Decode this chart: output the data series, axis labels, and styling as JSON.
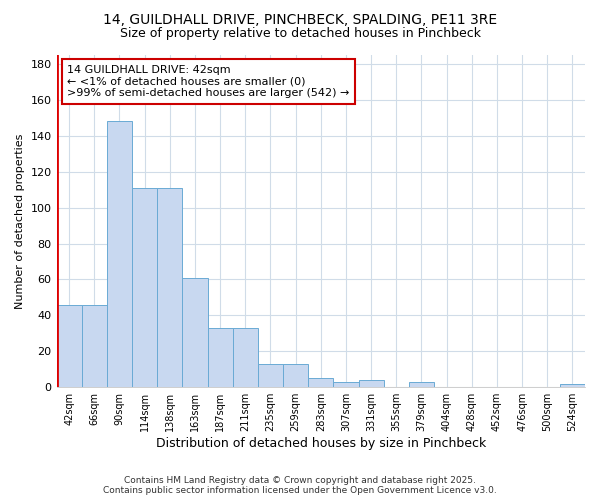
{
  "title_line1": "14, GUILDHALL DRIVE, PINCHBECK, SPALDING, PE11 3RE",
  "title_line2": "Size of property relative to detached houses in Pinchbeck",
  "xlabel": "Distribution of detached houses by size in Pinchbeck",
  "ylabel": "Number of detached properties",
  "categories": [
    "42sqm",
    "66sqm",
    "90sqm",
    "114sqm",
    "138sqm",
    "163sqm",
    "187sqm",
    "211sqm",
    "235sqm",
    "259sqm",
    "283sqm",
    "307sqm",
    "331sqm",
    "355sqm",
    "379sqm",
    "404sqm",
    "428sqm",
    "452sqm",
    "476sqm",
    "500sqm",
    "524sqm"
  ],
  "values": [
    46,
    46,
    148,
    111,
    111,
    61,
    33,
    33,
    13,
    13,
    5,
    3,
    4,
    0,
    3,
    0,
    0,
    0,
    0,
    0,
    2
  ],
  "bar_color": "#c8d8f0",
  "bar_edge_color": "#6aaad4",
  "ylim": [
    0,
    185
  ],
  "yticks": [
    0,
    20,
    40,
    60,
    80,
    100,
    120,
    140,
    160,
    180
  ],
  "bg_color": "#ffffff",
  "grid_color": "#d0dce8",
  "annotation_text": "14 GUILDHALL DRIVE: 42sqm\n← <1% of detached houses are smaller (0)\n>99% of semi-detached houses are larger (542) →",
  "annotation_box_color": "#ffffff",
  "annotation_box_edge_color": "#cc0000",
  "red_line_color": "#dd0000",
  "footer_line1": "Contains HM Land Registry data © Crown copyright and database right 2025.",
  "footer_line2": "Contains public sector information licensed under the Open Government Licence v3.0."
}
